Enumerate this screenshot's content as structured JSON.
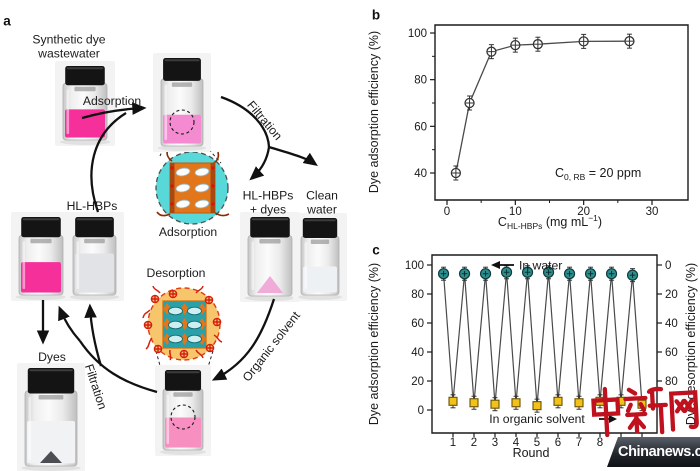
{
  "panel_labels": {
    "a": "a",
    "b": "b",
    "c": "c"
  },
  "panel_a": {
    "labels": {
      "synthetic_dye_line1": "Synthetic dye",
      "synthetic_dye_line2": "wastewater",
      "adsorption_arrow": "Adsorption",
      "filtration_top": "Filtration",
      "hl_hbps_dyes_line1": "HL-HBPs",
      "hl_hbps_dyes_line2": "+ dyes",
      "clean_water_line1": "Clean",
      "clean_water_line2": "water",
      "hl_hbps": "HL-HBPs",
      "adsorption_inset": "Adsorption",
      "desorption_inset": "Desorption",
      "organic_solvent": "Organic solvent",
      "filtration_bottom": "Filtration",
      "dyes": "Dyes"
    }
  },
  "chart_data": [
    {
      "panel": "b",
      "type": "line",
      "title": "",
      "xlabel_parts": {
        "base": "C",
        "sub": "HL-HBPs",
        "rest": " (mg mL",
        "sup": "−1",
        "end": ")"
      },
      "ylabel": "Dye adsorption efficiency (%)",
      "annotation_parts": {
        "base": "C",
        "sub": "0, RB",
        "rest": " = 20 ppm"
      },
      "x": [
        1.3,
        3.3,
        6.5,
        10,
        13.3,
        20,
        26.7
      ],
      "y": [
        40,
        70,
        92,
        94.8,
        95.2,
        96.4,
        96.5
      ],
      "x_ticks": [
        0,
        10,
        20,
        30
      ],
      "x_minor_ticks": [
        5,
        15,
        25
      ],
      "y_ticks": [
        40,
        60,
        80,
        100
      ],
      "y_minor_ticks": [
        50,
        70,
        90
      ],
      "xlim": [
        -2,
        35.5
      ],
      "ylim": [
        29.5,
        103.5
      ],
      "grid": false,
      "legend": "none",
      "line_color": "#4a4a4a",
      "marker": "open-circle-with-error-bars"
    },
    {
      "panel": "c",
      "type": "line",
      "title": "",
      "xlabel": "Round",
      "ylabel_left": "Dye adsorption efficiency (%)",
      "ylabel_right": "Dye desorption efficiency (%)",
      "annotation_top": "In water",
      "annotation_bottom": "In organic solvent",
      "rounds": [
        1,
        2,
        3,
        4,
        5,
        6,
        7,
        8,
        9,
        10
      ],
      "series": [
        {
          "name": "Dye adsorption efficiency (in water)",
          "axis": "left",
          "marker": "circle",
          "color": "#2a8f8f",
          "values": [
            94,
            94,
            94,
            95,
            95,
            95,
            94,
            94,
            94,
            93
          ]
        },
        {
          "name": "Dye desorption efficiency (in organic solvent)",
          "axis": "right",
          "marker": "square",
          "color": "#f2c11a",
          "values": [
            94,
            95,
            96,
            95,
            97,
            94,
            95,
            94,
            94,
            96
          ]
        }
      ],
      "left_ticks": [
        0,
        20,
        40,
        60,
        80,
        100
      ],
      "right_ticks": [
        0,
        20,
        40,
        60,
        80
      ],
      "right_axis_inverted": true,
      "grid": false,
      "line_color": "#4a4a4a"
    }
  ],
  "watermark": {
    "cn": "中新网",
    "en": "Chinanews.com",
    "red": "#c0111e"
  },
  "colors": {
    "dye_pink": "#f5309b",
    "mixture_pink": "#f48ad0",
    "desorption_pink": "#f78fc0",
    "adsorption_inset_cyan": "#58d8d8",
    "desorption_inset_orange": "#f6c56c",
    "inset_square_orange": "#e2761b",
    "marker_teal": "#2a8f8f",
    "marker_yellow": "#f2c11a"
  }
}
